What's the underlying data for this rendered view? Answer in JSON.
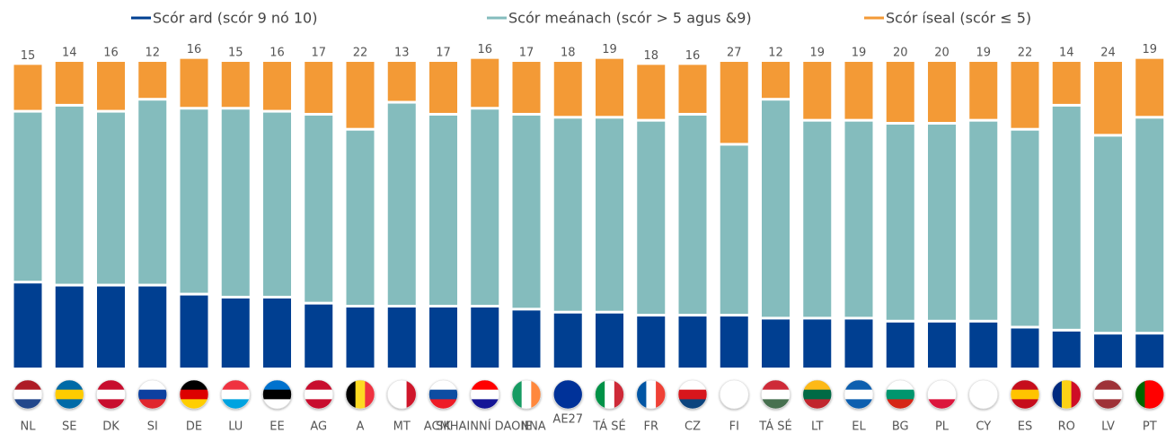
{
  "chart_data": {
    "type": "stacked_bar",
    "categories": [
      "NL",
      "SE",
      "DK",
      "SI",
      "DE",
      "LU",
      "EE",
      "AG",
      "A",
      "MT",
      "SK",
      "ACMHAINNÍ DAONNA",
      "IE",
      "AE27",
      "TÁ SÉ",
      "FR",
      "CZ",
      "FI",
      "TÁ SÉ",
      "LT",
      "EL",
      "BG",
      "PL",
      "CY",
      "ES",
      "RO",
      "LV",
      "PT"
    ],
    "series": [
      {
        "name": "Scór ard (scór 9 nó 10)",
        "color": "#003f91",
        "values": [
          28,
          27,
          27,
          27,
          24,
          23,
          23,
          21,
          20,
          20,
          20,
          20,
          19,
          18,
          18,
          17,
          17,
          17,
          16,
          16,
          16,
          15,
          15,
          15,
          13,
          12,
          11,
          11
        ]
      },
      {
        "name": "Scór meánach (scór > 5 agus &9)",
        "color": "#84bcbd",
        "values": [
          56,
          59,
          57,
          61,
          61,
          62,
          61,
          62,
          58,
          67,
          63,
          65,
          64,
          64,
          64,
          64,
          66,
          56,
          72,
          65,
          65,
          65,
          65,
          66,
          65,
          74,
          65,
          71
        ]
      },
      {
        "name": "Scór íseal (scór ≤ 5)",
        "color": "#f39a36",
        "values": [
          15,
          14,
          16,
          12,
          16,
          15,
          16,
          17,
          22,
          13,
          17,
          16,
          17,
          18,
          19,
          18,
          16,
          27,
          12,
          19,
          19,
          20,
          20,
          19,
          22,
          14,
          24,
          19
        ]
      }
    ]
  }
}
